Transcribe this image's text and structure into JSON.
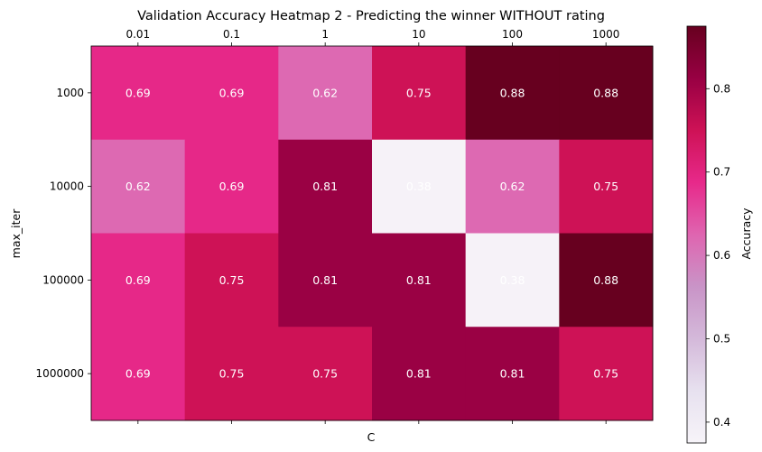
{
  "chart_data": {
    "type": "heatmap",
    "title": "Validation Accuracy Heatmap 2 - Predicting the winner WITHOUT rating",
    "xlabel": "C",
    "ylabel": "max_iter",
    "x_categories": [
      "0.01",
      "0.1",
      "1",
      "10",
      "100",
      "1000"
    ],
    "y_categories": [
      "1000",
      "10000",
      "100000",
      "1000000"
    ],
    "values": [
      [
        0.69,
        0.69,
        0.62,
        0.75,
        0.88,
        0.88
      ],
      [
        0.62,
        0.69,
        0.81,
        0.38,
        0.62,
        0.75
      ],
      [
        0.69,
        0.75,
        0.81,
        0.81,
        0.38,
        0.88
      ],
      [
        0.69,
        0.75,
        0.75,
        0.81,
        0.81,
        0.75
      ]
    ],
    "cell_labels": [
      [
        "0.69",
        "0.69",
        "0.62",
        "0.75",
        "0.88",
        "0.88"
      ],
      [
        "0.62",
        "0.69",
        "0.81",
        "0.38",
        "0.62",
        "0.75"
      ],
      [
        "0.69",
        "0.75",
        "0.81",
        "0.81",
        "0.38",
        "0.88"
      ],
      [
        "0.69",
        "0.75",
        "0.75",
        "0.81",
        "0.81",
        "0.75"
      ]
    ],
    "colormap": "PuRd",
    "vmin": 0.375,
    "vmax": 0.875,
    "colorbar": {
      "label": "Accuracy",
      "ticks": [
        0.4,
        0.5,
        0.6,
        0.7,
        0.8
      ],
      "tick_labels": [
        "0.4",
        "0.5",
        "0.6",
        "0.7",
        "0.8"
      ]
    },
    "grid": false,
    "x_tick_position": "top",
    "colors": {
      "colormap_stops": [
        "#f7f4f9",
        "#e7e1ef",
        "#d4b9da",
        "#c994c7",
        "#df65b0",
        "#e7298a",
        "#ce1256",
        "#980043",
        "#67001f"
      ]
    }
  }
}
